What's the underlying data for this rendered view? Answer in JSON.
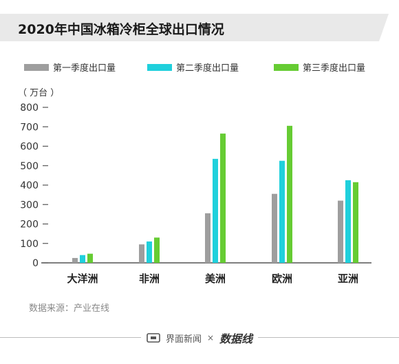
{
  "title": "2020年中国冰箱冷柜全球出口情况",
  "unit": "（ 万台 ）",
  "source": "数据来源：产业在线",
  "footer": {
    "brand_left": "界面新闻",
    "separator": "×",
    "brand_right": "数据线"
  },
  "colors": {
    "q1": "#9e9e9e",
    "q2": "#1fd0dc",
    "q3": "#66cc33"
  },
  "chart_data": {
    "type": "bar",
    "categories": [
      "大洋洲",
      "非洲",
      "美洲",
      "欧洲",
      "亚洲"
    ],
    "series": [
      {
        "name": "第一季度出口量",
        "values": [
          25,
          95,
          255,
          355,
          320
        ]
      },
      {
        "name": "第二季度出口量",
        "values": [
          40,
          110,
          535,
          525,
          425
        ]
      },
      {
        "name": "第三季度出口量",
        "values": [
          47,
          130,
          665,
          705,
          415
        ]
      }
    ],
    "yticks": [
      0,
      100,
      200,
      300,
      400,
      500,
      600,
      700,
      800
    ],
    "ylim": [
      0,
      800
    ],
    "grid": false,
    "legend": "top"
  }
}
